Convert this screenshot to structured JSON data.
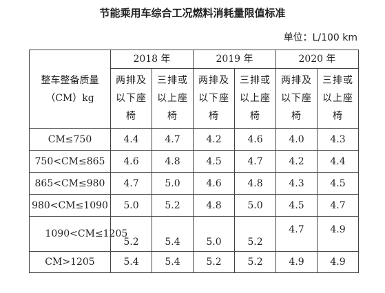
{
  "header": {
    "title": "节能乘用车综合工况燃料消耗量限值标准",
    "unit": "单位：L/100 km"
  },
  "table": {
    "row_header": "整车整备质量（CM）kg",
    "years": [
      "2018 年",
      "2019 年",
      "2020 年"
    ],
    "sub_columns": [
      "两排及以下座椅",
      "三排或以上座椅"
    ],
    "rows": [
      [
        "CM≤750",
        "4.4",
        "4.7",
        "4.2",
        "4.6",
        "4.0",
        "4.3"
      ],
      [
        "750<CM≤865",
        "4.6",
        "4.8",
        "4.5",
        "4.7",
        "4.2",
        "4.4"
      ],
      [
        "865<CM≤980",
        "4.7",
        "5.0",
        "4.6",
        "4.8",
        "4.3",
        "4.5"
      ],
      [
        "980<CM≤1090",
        "5.0",
        "5.2",
        "4.8",
        "5.0",
        "4.5",
        "4.7"
      ],
      [
        "1090<CM≤1205",
        "5.2",
        "5.4",
        "5.0",
        "5.2",
        "4.7",
        "4.9"
      ],
      [
        "CM>1205",
        "5.4",
        "5.4",
        "5.2",
        "5.2",
        "4.9",
        "4.9"
      ]
    ]
  }
}
